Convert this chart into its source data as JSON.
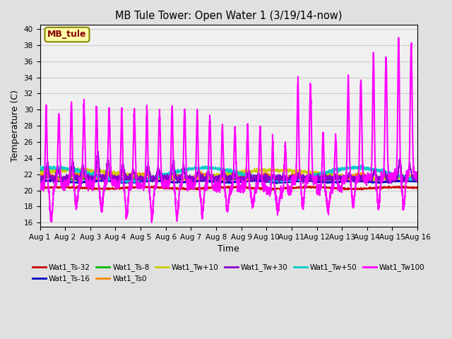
{
  "title": "MB Tule Tower: Open Water 1 (3/19/14-now)",
  "xlabel": "Time",
  "ylabel": "Temperature (C)",
  "ylim": [
    15.5,
    40.5
  ],
  "yticks": [
    16,
    18,
    20,
    22,
    24,
    26,
    28,
    30,
    32,
    34,
    36,
    38,
    40
  ],
  "x_labels": [
    "Aug 1",
    "Aug 2",
    "Aug 3",
    "Aug 4",
    "Aug 5",
    "Aug 6",
    "Aug 7",
    "Aug 8",
    "Aug 9",
    "Aug 10",
    "Aug 11",
    "Aug 12",
    "Aug 13",
    "Aug 14",
    "Aug 15",
    "Aug 16"
  ],
  "annotation_text": "MB_tule",
  "series": {
    "Wat1_Ts-32": {
      "color": "#cc0000",
      "lw": 1.2
    },
    "Wat1_Ts-16": {
      "color": "#0000bb",
      "lw": 1.2
    },
    "Wat1_Ts-8": {
      "color": "#00bb00",
      "lw": 1.2
    },
    "Wat1_Ts0": {
      "color": "#ff8800",
      "lw": 1.2
    },
    "Wat1_Tw+10": {
      "color": "#cccc00",
      "lw": 1.2
    },
    "Wat1_Tw+30": {
      "color": "#8800cc",
      "lw": 1.2
    },
    "Wat1_Tw+50": {
      "color": "#00cccc",
      "lw": 1.2
    },
    "Wat1_Tw100": {
      "color": "#ff00ff",
      "lw": 1.5
    }
  },
  "grid_color": "#cccccc",
  "bg_color": "#e0e0e0",
  "plot_bg": "#f0f0f0"
}
